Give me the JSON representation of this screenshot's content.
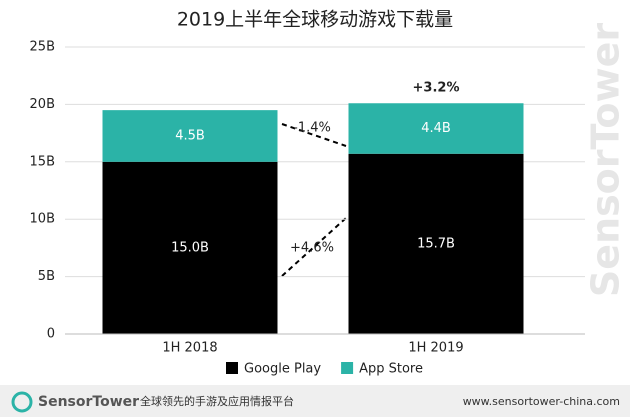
{
  "chart_data": {
    "type": "stacked_bar",
    "title": "2019上半年全球移动游戏下载量",
    "categories": [
      "1H 2018",
      "1H 2019"
    ],
    "series": [
      {
        "name": "Google Play",
        "color": "#000000",
        "values": [
          15.0,
          15.7
        ],
        "value_labels": [
          "15.0B",
          "15.7B"
        ]
      },
      {
        "name": "App Store",
        "color": "#2bb3a7",
        "values": [
          4.5,
          4.4
        ],
        "value_labels": [
          "4.5B",
          "4.4B"
        ]
      }
    ],
    "ylim": [
      0,
      25
    ],
    "yticks": [
      0,
      {
        "value": 5,
        "label": "5B"
      },
      {
        "value": 10,
        "label": "10B"
      },
      {
        "value": 15,
        "label": "15B"
      },
      {
        "value": 20,
        "label": "20B"
      },
      {
        "value": 25,
        "label": "25B"
      }
    ],
    "grid": true,
    "legend": "bottom",
    "annotations": [
      "-1.4%",
      "+4.6%",
      "+3.2%"
    ]
  },
  "footer": {
    "brand": "SensorTower",
    "tagline": "全球领先的手游及应用情报平台",
    "url": "www.sensortower-china.com"
  },
  "watermark": "SensorTower"
}
